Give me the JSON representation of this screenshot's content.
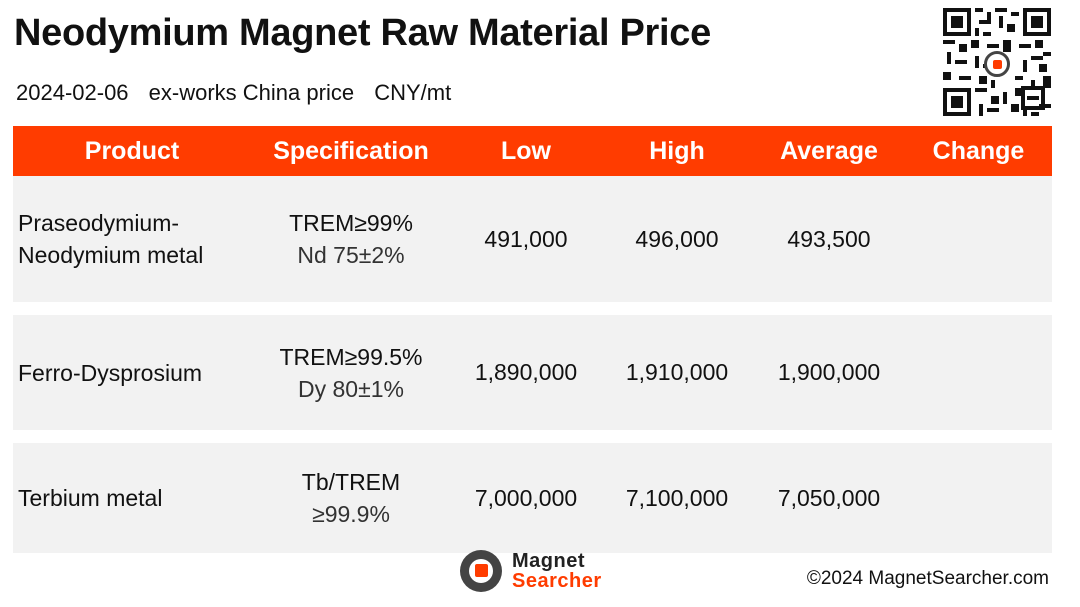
{
  "title": "Neodymium Magnet Raw Material Price",
  "subtitle": {
    "date": "2024-02-06",
    "basis": "ex-works China price",
    "unit": "CNY/mt"
  },
  "table": {
    "headers": [
      "Product",
      "Specification",
      "Low",
      "High",
      "Average",
      "Change"
    ],
    "rows": [
      {
        "product": [
          "Praseodymium-",
          "Neodymium metal"
        ],
        "spec": [
          "TREM≥99%",
          "Nd 75±2%"
        ],
        "low": "491,000",
        "high": "496,000",
        "average": "493,500",
        "change": ""
      },
      {
        "product": [
          "Ferro-Dysprosium"
        ],
        "spec": [
          "TREM≥99.5%",
          "Dy 80±1%"
        ],
        "low": "1,890,000",
        "high": "1,910,000",
        "average": "1,900,000",
        "change": ""
      },
      {
        "product": [
          "Terbium metal"
        ],
        "spec": [
          "Tb/TREM",
          "≥99.9%"
        ],
        "low": "7,000,000",
        "high": "7,100,000",
        "average": "7,050,000",
        "change": ""
      }
    ]
  },
  "footer": {
    "logo_line1": "Magnet",
    "logo_line2": "Searcher",
    "copyright": "©2024 MagnetSearcher.com"
  },
  "icons": {
    "qr": "qr-code-icon",
    "logo": "magnet-searcher-logo-icon"
  },
  "colors": {
    "accent": "#ff3c00",
    "row_bg": "#f2f2f2"
  }
}
